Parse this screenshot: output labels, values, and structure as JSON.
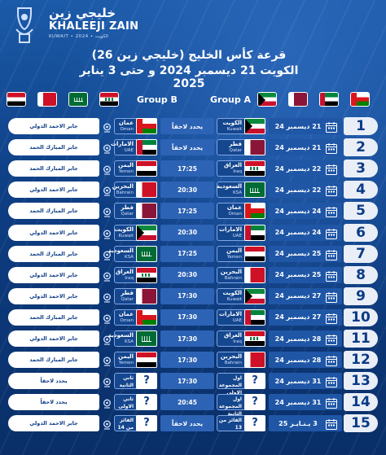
{
  "header": {
    "brand_ar": "خليجي زين",
    "brand_en": "KHALEEJI ZAIN",
    "brand_sub": "KUWAIT • 2024 • الكويت",
    "title_line1": "قرعة كأس الخليج (خليجي زين 26)",
    "title_line2": "الكويت 21 ديسمبر 2024 و حتى 3 يناير 2025"
  },
  "groups": {
    "group_b_label": "Group B",
    "group_a_label": "Group A",
    "group_b_flags": [
      "yemen",
      "bahrain",
      "ksa",
      "iraq"
    ],
    "group_a_flags": [
      "kuwait",
      "qatar",
      "uae",
      "oman"
    ]
  },
  "matches": [
    {
      "num": "1",
      "date": "21 ديسمبر 24",
      "a_ar": "الكويت",
      "a_en": "Kuwait",
      "a_flag": "kuwait",
      "time": "يحدد لاحقاً",
      "b_ar": "عمان",
      "b_en": "Oman",
      "b_flag": "oman",
      "venue": "جابر الاحمد الدولي"
    },
    {
      "num": "2",
      "date": "21 ديسمبر 24",
      "a_ar": "قطر",
      "a_en": "Qatar",
      "a_flag": "qatar",
      "time": "يحدد لاحقاً",
      "b_ar": "الامارات",
      "b_en": "UAE",
      "b_flag": "uae",
      "venue": "جابر المبارك الحمد"
    },
    {
      "num": "3",
      "date": "22 ديسمبر 24",
      "a_ar": "العراق",
      "a_en": "Iraq",
      "a_flag": "iraq",
      "time": "17:25",
      "b_ar": "اليمن",
      "b_en": "Yemen",
      "b_flag": "yemen",
      "venue": "جابر المبارك الحمد"
    },
    {
      "num": "4",
      "date": "22 ديسمبر 24",
      "a_ar": "السعودية",
      "a_en": "KSA",
      "a_flag": "ksa",
      "time": "20:30",
      "b_ar": "البحرين",
      "b_en": "Bahrain",
      "b_flag": "bahrain",
      "venue": "جابر الاحمد الدولي"
    },
    {
      "num": "5",
      "date": "24 ديسمبر 24",
      "a_ar": "عمان",
      "a_en": "Oman",
      "a_flag": "oman",
      "time": "17:25",
      "b_ar": "قطر",
      "b_en": "Qatar",
      "b_flag": "qatar",
      "venue": "جابر المبارك الحمد"
    },
    {
      "num": "6",
      "date": "24 ديسمبر 24",
      "a_ar": "الامارات",
      "a_en": "UAE",
      "a_flag": "uae",
      "time": "20:30",
      "b_ar": "الكويت",
      "b_en": "Kuwait",
      "b_flag": "kuwait",
      "venue": "جابر الاحمد الدولي"
    },
    {
      "num": "7",
      "date": "25 ديسمبر 24",
      "a_ar": "اليمن",
      "a_en": "Yemen",
      "a_flag": "yemen",
      "time": "17:25",
      "b_ar": "السعودية",
      "b_en": "KSA",
      "b_flag": "ksa",
      "venue": "جابر المبارك الحمد"
    },
    {
      "num": "8",
      "date": "25 ديسمبر 24",
      "a_ar": "البحرين",
      "a_en": "Bahrain",
      "a_flag": "bahrain",
      "time": "20:30",
      "b_ar": "العراق",
      "b_en": "Iraq",
      "b_flag": "iraq",
      "venue": "جابر الاحمد الدولي"
    },
    {
      "num": "9",
      "date": "27 ديسمبر 24",
      "a_ar": "الكويت",
      "a_en": "Kuwait",
      "a_flag": "kuwait",
      "time": "17:30",
      "b_ar": "قطر",
      "b_en": "Qatar",
      "b_flag": "qatar",
      "venue": "جابر الاحمد الدولي"
    },
    {
      "num": "10",
      "date": "27 ديسمبر 24",
      "a_ar": "الامارات",
      "a_en": "UAE",
      "a_flag": "uae",
      "time": "17:30",
      "b_ar": "عمان",
      "b_en": "Oman",
      "b_flag": "oman",
      "venue": "جابر المبارك الحمد"
    },
    {
      "num": "11",
      "date": "28 ديسمبر 24",
      "a_ar": "العراق",
      "a_en": "Iraq",
      "a_flag": "iraq",
      "time": "17:30",
      "b_ar": "السعودية",
      "b_en": "KSA",
      "b_flag": "ksa",
      "venue": "جابر الاحمد الدولي"
    },
    {
      "num": "12",
      "date": "28 ديسمبر 24",
      "a_ar": "البحرين",
      "a_en": "Bahrain",
      "a_flag": "bahrain",
      "time": "17:30",
      "b_ar": "اليمن",
      "b_en": "Yemen",
      "b_flag": "yemen",
      "venue": "جابر المبارك الحمد"
    },
    {
      "num": "13",
      "date": "31 ديسمبر 24",
      "a_ar": "اول المجموعة الاولى",
      "a_en": "",
      "a_flag": "?",
      "time": "17:30",
      "b_ar": "ثاني الثانية",
      "b_en": "",
      "b_flag": "?",
      "venue": "يحدد لاحقاً"
    },
    {
      "num": "14",
      "date": "31 ديسمبر 24",
      "a_ar": "اول المجموعة الثانية",
      "a_en": "",
      "a_flag": "?",
      "time": "20:45",
      "b_ar": "ثاني الاولى",
      "b_en": "",
      "b_flag": "?",
      "venue": "يحدد لاحقاً"
    },
    {
      "num": "15",
      "date": "3 يـنـايـر 25",
      "a_ar": "الفائز من 13",
      "a_en": "",
      "a_flag": "?",
      "time": "يحدد لاحقاً",
      "b_ar": "الفائز من 14",
      "b_en": "",
      "b_flag": "?",
      "venue": "جابر الاحمد الدولي"
    }
  ],
  "colors": {
    "accent": "#1b5aa8",
    "dark": "#0a2f68",
    "card": "#e9eef7"
  }
}
